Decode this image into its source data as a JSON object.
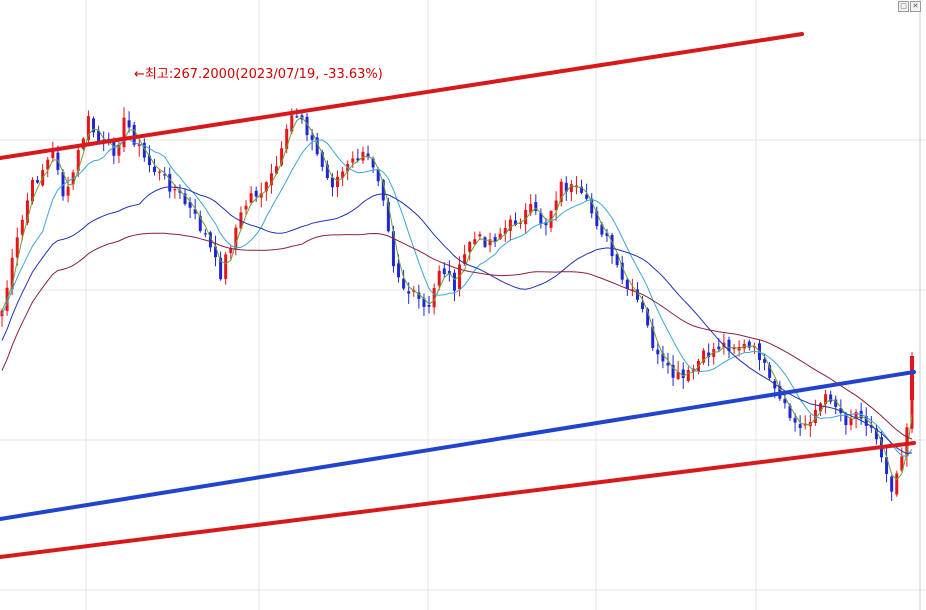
{
  "window": {
    "minimize_glyph": "□",
    "close_glyph": "✕"
  },
  "annotation": {
    "text": "←최고:267.2000(2023/07/19, -33.63%)",
    "color": "#d40000"
  },
  "colors": {
    "up": "#e8141a",
    "down": "#1f26d6",
    "ma5": "#6aa331",
    "ma20": "#3aa7d8",
    "ma60": "#2233b0",
    "ma120": "#8a2040",
    "trend_red": "#d7191c",
    "trend_blue": "#2244cc",
    "grid": "#e4e4e4"
  },
  "chart_data": {
    "type": "candlestick",
    "candles": 180,
    "high": 267.2,
    "high_date": "2023/07/19",
    "high_change_pct": -33.63,
    "series": [
      {
        "type": "moving_average",
        "color": "#6aa331"
      },
      {
        "type": "moving_average",
        "color": "#3aa7d8"
      },
      {
        "type": "moving_average",
        "color": "#2233b0"
      },
      {
        "type": "moving_average",
        "color": "#8a2040"
      }
    ],
    "trendlines": [
      {
        "color": "#d7191c"
      },
      {
        "color": "#d7191c"
      },
      {
        "color": "#2244cc"
      }
    ],
    "grid": true
  }
}
